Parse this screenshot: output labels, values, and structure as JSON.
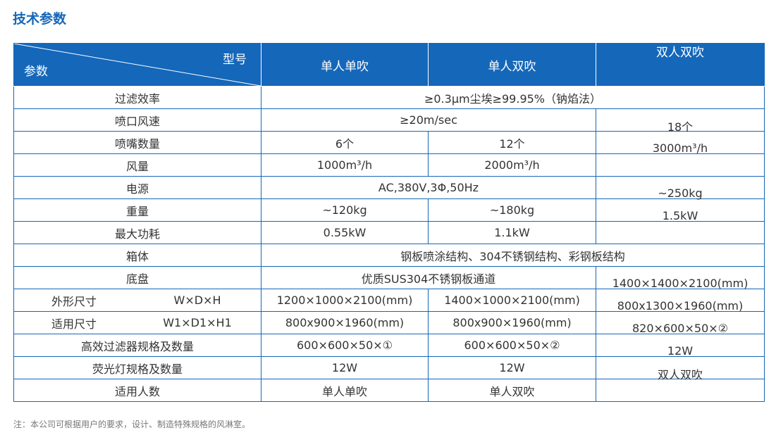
{
  "page": {
    "title": "技术参数",
    "note": "注：本公司可根据用户的要求，设计、制造特殊规格的风淋室。"
  },
  "colors": {
    "accent": "#1567b9",
    "border": "#1567b9",
    "text": "#333333",
    "note": "#777777"
  },
  "header": {
    "corner_model": "型号",
    "corner_param": "参数",
    "col1": "单人单吹",
    "col2": "单人双吹",
    "col3": "双人双吹"
  },
  "rows": {
    "filter_eff": {
      "label": "过滤效率",
      "value": "≥0.3μm尘埃≥99.95%（钠焰法）"
    },
    "nozzle_speed": {
      "label": "喷口风速",
      "value": "≥20m/sec",
      "c3": "18个"
    },
    "nozzle_count": {
      "label": "喷嘴数量",
      "c1": "6个",
      "c2": "12个",
      "c3": "3000m³/h"
    },
    "air_volume": {
      "label": "风量",
      "c1": "1000m³/h",
      "c2": "2000m³/h"
    },
    "power_supply": {
      "label": "电源",
      "value": "AC,380V,3Φ,50Hz",
      "c3": "~250kg"
    },
    "weight": {
      "label": "重量",
      "c1": "~120kg",
      "c2": "~180kg",
      "c3": "1.5kW"
    },
    "max_power": {
      "label": "最大功耗",
      "c1": "0.55kW",
      "c2": "1.1kW"
    },
    "cabinet": {
      "label": "箱体",
      "value": "钢板喷涂结构、304不锈钢结构、彩钢板结构"
    },
    "chassis": {
      "label": "底盘",
      "value": "优质SUS304不锈钢板通道",
      "c3": "1400×1400×2100(mm)"
    },
    "outer_size": {
      "label": "外形尺寸",
      "sub": "W×D×H",
      "c1": "1200×1000×2100(mm)",
      "c2": "1400×1000×2100(mm)",
      "c3": "800x1300×1960(mm)"
    },
    "usable_size": {
      "label": "适用尺寸",
      "sub": "W1×D1×H1",
      "c1": "800x900×1960(mm)",
      "c2": "800x900×1960(mm)",
      "c3": "820×600×50×②"
    },
    "hepa": {
      "label": "高效过滤器规格及数量",
      "c1": "600×600×50×①",
      "c2": "600×600×50×②",
      "c3": "12W"
    },
    "lamp": {
      "label": "荧光灯规格及数量",
      "c1": "12W",
      "c2": "12W",
      "c3": "双人双吹"
    },
    "persons": {
      "label": "适用人数",
      "c1": "单人单吹",
      "c2": "单人双吹"
    }
  }
}
